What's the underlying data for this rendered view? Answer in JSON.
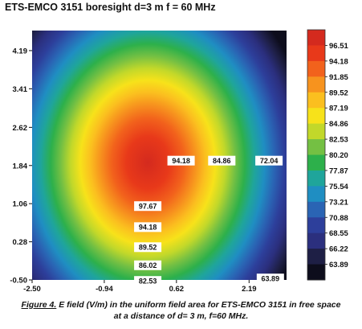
{
  "chart_data": {
    "type": "heatmap",
    "title": "ETS-EMCO 3151 boresight d=3 m f = 60 MHz",
    "x_ticks": [
      "-2.50",
      "-0.94",
      "0.62",
      "2.19"
    ],
    "y_ticks": [
      "4.19",
      "3.41",
      "2.62",
      "1.84",
      "1.06",
      "0.28",
      "-0.50"
    ],
    "xlim": [
      -2.5,
      3.0
    ],
    "ylim": [
      -0.5,
      4.6
    ],
    "center": {
      "x": 0.0,
      "y": 1.9
    },
    "peak_value": 99.0,
    "colorbar_ticks": [
      "96.51",
      "94.18",
      "91.85",
      "89.52",
      "87.19",
      "84.86",
      "82.53",
      "80.20",
      "77.87",
      "75.54",
      "73.21",
      "70.88",
      "68.55",
      "66.22",
      "63.89"
    ],
    "colorbar_colors": [
      "#d42a1e",
      "#e8391a",
      "#f2621c",
      "#f7931e",
      "#fbbf1f",
      "#f7e21a",
      "#c2d82a",
      "#74c043",
      "#2db04b",
      "#1fa59b",
      "#1f8ec2",
      "#2a64b4",
      "#2d3f9b",
      "#2b2f7e",
      "#1e1f45",
      "#0d0d1c"
    ],
    "contour_labels": [
      {
        "text": "94.18",
        "x": 0.72,
        "y": 1.94
      },
      {
        "text": "84.86",
        "x": 1.6,
        "y": 1.94
      },
      {
        "text": "72.04",
        "x": 2.62,
        "y": 1.94
      },
      {
        "text": "97.67",
        "x": 0.0,
        "y": 1.01
      },
      {
        "text": "94.18",
        "x": 0.0,
        "y": 0.58
      },
      {
        "text": "89.52",
        "x": 0.0,
        "y": 0.17
      },
      {
        "text": "86.02",
        "x": 0.0,
        "y": -0.2
      },
      {
        "text": "82.53",
        "x": 0.0,
        "y": -0.52
      },
      {
        "text": "63.89",
        "x": 2.65,
        "y": -0.47
      }
    ]
  },
  "caption": {
    "figure_label": "Figure 4.",
    "line1": " E field (V/m) in the uniform field area for ETS-EMCO 3151 in free space",
    "line2": "at a distance of d= 3 m, f=60 MHz."
  }
}
